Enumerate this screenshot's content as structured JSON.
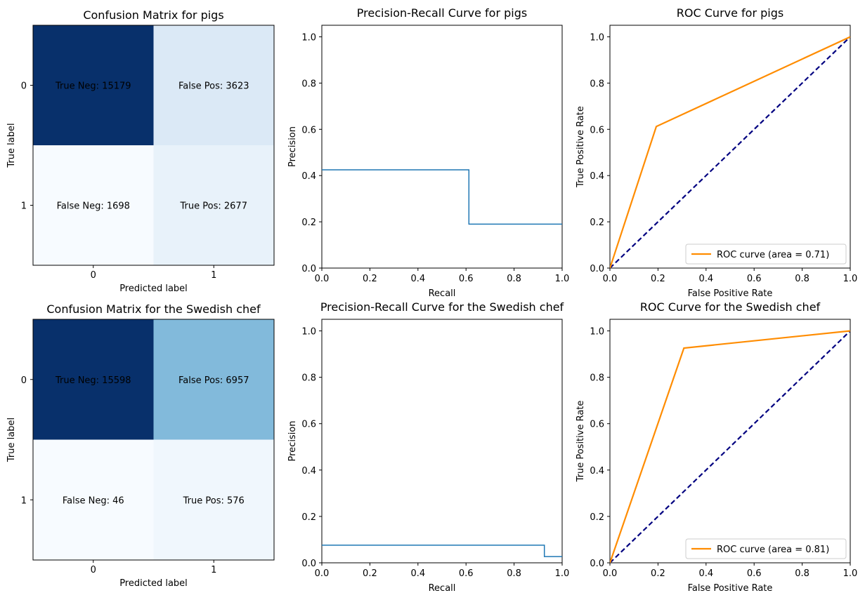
{
  "colors": {
    "cm_dark": "#08306b",
    "pr_line": "#1f77b4",
    "roc_line": "#ff8c00",
    "diag_line": "#000080"
  },
  "chart_data": [
    {
      "type": "heatmap",
      "title": "Confusion Matrix for pigs",
      "xlabel": "Predicted label",
      "ylabel": "True label",
      "x_ticks": [
        "0",
        "1"
      ],
      "y_ticks": [
        "0",
        "1"
      ],
      "colormap": "Blues",
      "cells": [
        {
          "row": 0,
          "col": 0,
          "value": 15179,
          "label": "True Neg: 15179"
        },
        {
          "row": 0,
          "col": 1,
          "value": 3623,
          "label": "False Pos: 3623"
        },
        {
          "row": 1,
          "col": 0,
          "value": 1698,
          "label": "False Neg: 1698"
        },
        {
          "row": 1,
          "col": 1,
          "value": 2677,
          "label": "True Pos: 2677"
        }
      ]
    },
    {
      "type": "line",
      "title": "Precision-Recall Curve for pigs",
      "xlabel": "Recall",
      "ylabel": "Precision",
      "xlim": [
        0,
        1
      ],
      "ylim": [
        0,
        1.05
      ],
      "x_ticks": [
        "0.0",
        "0.2",
        "0.4",
        "0.6",
        "0.8",
        "1.0"
      ],
      "y_ticks": [
        "0.0",
        "0.2",
        "0.4",
        "0.6",
        "0.8",
        "1.0"
      ],
      "step": "post",
      "x": [
        0.0,
        0.612,
        0.612,
        1.0
      ],
      "y": [
        0.425,
        0.425,
        0.19,
        0.19
      ]
    },
    {
      "type": "line",
      "title": "ROC Curve for pigs",
      "xlabel": "False Positive Rate",
      "ylabel": "True Positive Rate",
      "xlim": [
        0,
        1
      ],
      "ylim": [
        0,
        1.05
      ],
      "x_ticks": [
        "0.0",
        "0.2",
        "0.4",
        "0.6",
        "0.8",
        "1.0"
      ],
      "y_ticks": [
        "0.0",
        "0.2",
        "0.4",
        "0.6",
        "0.8",
        "1.0"
      ],
      "legend": {
        "placement": "lower-right",
        "label": "ROC curve (area = 0.71)"
      },
      "series": [
        {
          "name": "ROC curve (area = 0.71)",
          "x": [
            0.0,
            0.193,
            1.0
          ],
          "y": [
            0.0,
            0.612,
            1.0
          ]
        }
      ],
      "diagonal": {
        "x": [
          0,
          1
        ],
        "y": [
          0,
          1
        ]
      }
    },
    {
      "type": "heatmap",
      "title": "Confusion Matrix for the Swedish chef",
      "xlabel": "Predicted label",
      "ylabel": "True label",
      "x_ticks": [
        "0",
        "1"
      ],
      "y_ticks": [
        "0",
        "1"
      ],
      "colormap": "Blues",
      "cells": [
        {
          "row": 0,
          "col": 0,
          "value": 15598,
          "label": "True Neg: 15598"
        },
        {
          "row": 0,
          "col": 1,
          "value": 6957,
          "label": "False Pos: 6957"
        },
        {
          "row": 1,
          "col": 0,
          "value": 46,
          "label": "False Neg: 46"
        },
        {
          "row": 1,
          "col": 1,
          "value": 576,
          "label": "True Pos: 576"
        }
      ]
    },
    {
      "type": "line",
      "title": "Precision-Recall Curve for the Swedish chef",
      "xlabel": "Recall",
      "ylabel": "Precision",
      "xlim": [
        0,
        1
      ],
      "ylim": [
        0,
        1.05
      ],
      "x_ticks": [
        "0.0",
        "0.2",
        "0.4",
        "0.6",
        "0.8",
        "1.0"
      ],
      "y_ticks": [
        "0.0",
        "0.2",
        "0.4",
        "0.6",
        "0.8",
        "1.0"
      ],
      "step": "post",
      "x": [
        0.0,
        0.926,
        0.926,
        1.0
      ],
      "y": [
        0.076,
        0.076,
        0.027,
        0.027
      ]
    },
    {
      "type": "line",
      "title": "ROC Curve for the Swedish chef",
      "xlabel": "False Positive Rate",
      "ylabel": "True Positive Rate",
      "xlim": [
        0,
        1
      ],
      "ylim": [
        0,
        1.05
      ],
      "x_ticks": [
        "0.0",
        "0.2",
        "0.4",
        "0.6",
        "0.8",
        "1.0"
      ],
      "y_ticks": [
        "0.0",
        "0.2",
        "0.4",
        "0.6",
        "0.8",
        "1.0"
      ],
      "legend": {
        "placement": "lower-right",
        "label": "ROC curve (area = 0.81)"
      },
      "series": [
        {
          "name": "ROC curve (area = 0.81)",
          "x": [
            0.0,
            0.308,
            1.0
          ],
          "y": [
            0.0,
            0.926,
            1.0
          ]
        }
      ],
      "diagonal": {
        "x": [
          0,
          1
        ],
        "y": [
          0,
          1
        ]
      }
    }
  ]
}
